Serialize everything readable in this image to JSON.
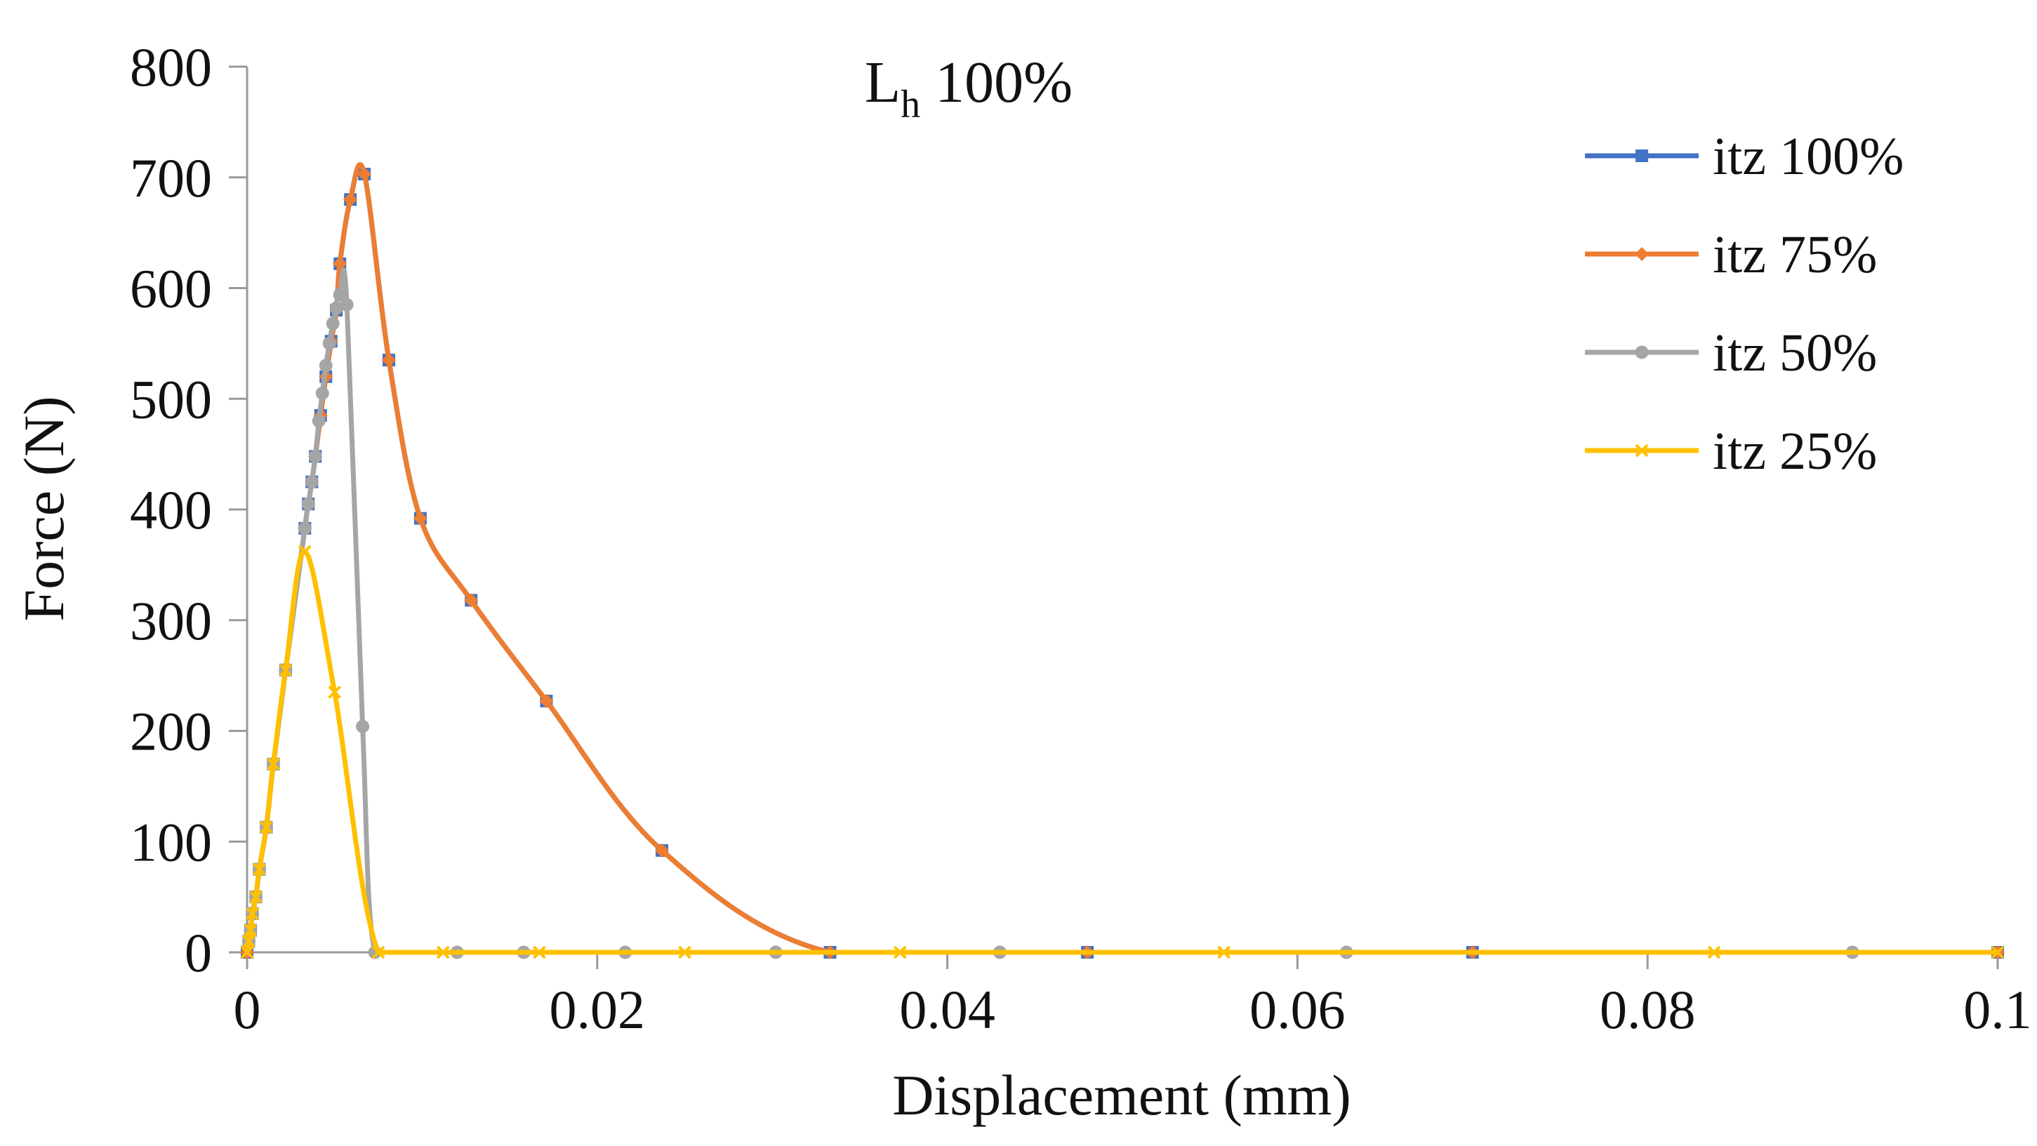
{
  "chart_data": {
    "type": "line",
    "title": {
      "main": "L",
      "sub": "h",
      "rest": " 100%"
    },
    "xlabel": "Displacement (mm)",
    "ylabel": "Force (N)",
    "xlim": [
      0,
      0.1
    ],
    "ylim": [
      0,
      800
    ],
    "xticks": [
      0,
      0.02,
      0.04,
      0.06,
      0.08,
      0.1
    ],
    "xtick_labels": [
      "0",
      "0.02",
      "0.04",
      "0.06",
      "0.08",
      "0.1"
    ],
    "yticks": [
      0,
      100,
      200,
      300,
      400,
      500,
      600,
      700,
      800
    ],
    "ytick_labels": [
      "0",
      "100",
      "200",
      "300",
      "400",
      "500",
      "600",
      "700",
      "800"
    ],
    "grid": false,
    "legend": "right",
    "series": [
      {
        "name": "itz 100%",
        "color": "#4472C4",
        "marker": "square",
        "x": [
          0,
          0.0001,
          0.0002,
          0.0003,
          0.0005,
          0.0007,
          0.0011,
          0.0015,
          0.0022,
          0.0033,
          0.0035,
          0.0037,
          0.0039,
          0.0042,
          0.0045,
          0.0048,
          0.0051,
          0.0053,
          0.0059,
          0.0067,
          0.0081,
          0.0099,
          0.0128,
          0.0171,
          0.0237,
          0.0333,
          0.048,
          0.07,
          0.1
        ],
        "y": [
          0,
          10,
          20,
          35,
          50,
          75,
          113,
          170,
          255,
          383,
          405,
          425,
          448,
          485,
          520,
          552,
          580,
          622,
          680,
          703,
          535,
          392,
          318,
          227,
          92,
          0,
          0,
          0,
          0
        ]
      },
      {
        "name": "itz 75%",
        "color": "#ED7D31",
        "marker": "diamond",
        "x": [
          0,
          0.0001,
          0.0002,
          0.0003,
          0.0005,
          0.0007,
          0.0011,
          0.0015,
          0.0022,
          0.0033,
          0.0035,
          0.0037,
          0.0039,
          0.0042,
          0.0045,
          0.0048,
          0.0051,
          0.0053,
          0.0059,
          0.0067,
          0.0081,
          0.0099,
          0.0128,
          0.0171,
          0.0237,
          0.0333,
          0.048,
          0.07,
          0.1
        ],
        "y": [
          0,
          10,
          20,
          35,
          50,
          75,
          113,
          170,
          255,
          383,
          405,
          425,
          448,
          485,
          520,
          552,
          580,
          622,
          680,
          703,
          535,
          392,
          318,
          227,
          92,
          0,
          0,
          0,
          0
        ]
      },
      {
        "name": "itz 50%",
        "color": "#A5A5A5",
        "marker": "circle",
        "x": [
          0,
          0.0001,
          0.0002,
          0.0003,
          0.0005,
          0.0007,
          0.0011,
          0.0015,
          0.0022,
          0.0033,
          0.0035,
          0.0037,
          0.0039,
          0.0041,
          0.0043,
          0.0045,
          0.0047,
          0.0049,
          0.0051,
          0.0053,
          0.0057,
          0.0066,
          0.0073,
          0.0095,
          0.012,
          0.0158,
          0.0216,
          0.0302,
          0.043,
          0.0628,
          0.0917,
          0.1
        ],
        "y": [
          0,
          10,
          20,
          35,
          50,
          75,
          113,
          170,
          255,
          383,
          405,
          425,
          448,
          480,
          505,
          530,
          550,
          568,
          582,
          594,
          585,
          204,
          0,
          0,
          0,
          0,
          0,
          0,
          0,
          0,
          0,
          0
        ],
        "points_shown": [
          1,
          2,
          3,
          4,
          5,
          6,
          7,
          8,
          9,
          10,
          11,
          12,
          13,
          14,
          15,
          16,
          17,
          18,
          19,
          20,
          21,
          22,
          24,
          25,
          26,
          27,
          28,
          29,
          30
        ]
      },
      {
        "name": "itz 25%",
        "color": "#FFC000",
        "marker": "x",
        "x": [
          0,
          0.0001,
          0.0002,
          0.0003,
          0.0005,
          0.0007,
          0.0011,
          0.0015,
          0.0022,
          0.0033,
          0.005,
          0.0075,
          0.0112,
          0.0167,
          0.025,
          0.0373,
          0.0558,
          0.0838,
          0.1
        ],
        "y": [
          0,
          10,
          20,
          35,
          50,
          75,
          113,
          170,
          255,
          362,
          235,
          0,
          0,
          0,
          0,
          0,
          0,
          0,
          0
        ]
      }
    ]
  }
}
